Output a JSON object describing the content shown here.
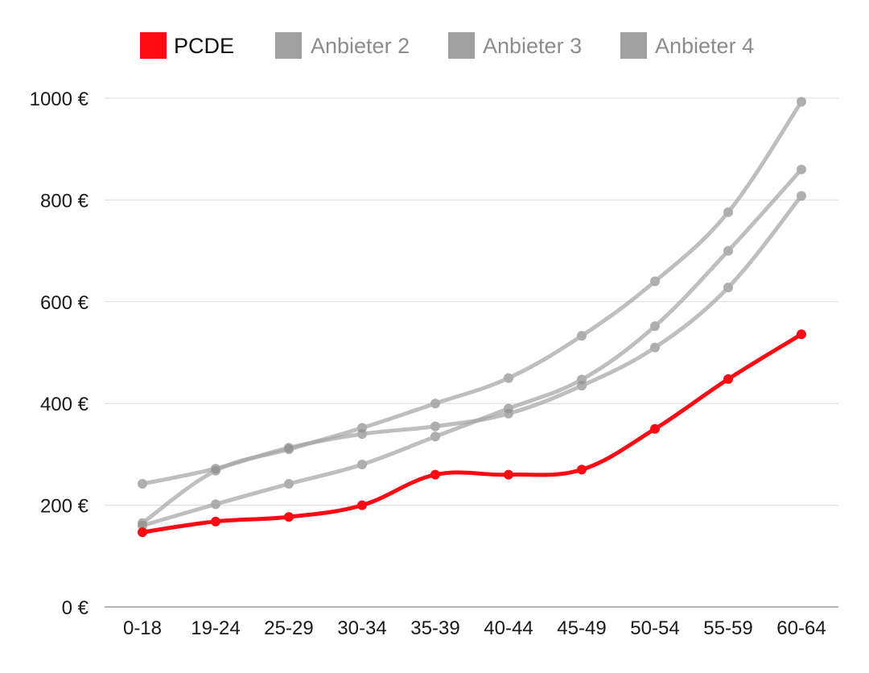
{
  "chart_data": {
    "type": "line",
    "categories": [
      "0-18",
      "19-24",
      "25-29",
      "30-34",
      "35-39",
      "40-44",
      "45-49",
      "50-54",
      "55-59",
      "60-64"
    ],
    "series": [
      {
        "name": "PCDE",
        "color": "#ff0a14",
        "values": [
          147,
          168,
          177,
          200,
          260,
          260,
          270,
          350,
          448,
          536
        ]
      },
      {
        "name": "Anbieter 2",
        "color": "#a6a6a6",
        "values": [
          242,
          272,
          313,
          340,
          355,
          380,
          435,
          510,
          628,
          808
        ]
      },
      {
        "name": "Anbieter 3",
        "color": "#a6a6a6",
        "values": [
          165,
          268,
          310,
          352,
          400,
          450,
          533,
          640,
          776,
          993
        ]
      },
      {
        "name": "Anbieter 4",
        "color": "#a6a6a6",
        "values": [
          160,
          202,
          242,
          280,
          335,
          390,
          447,
          552,
          700,
          860
        ]
      }
    ],
    "ylim": [
      0,
      1000
    ],
    "yticks": [
      0,
      200,
      400,
      600,
      800,
      1000
    ],
    "ytick_labels": [
      "0 €",
      "200 €",
      "400 €",
      "600 €",
      "800 €",
      "1000 €"
    ],
    "grid": true,
    "legend_position": "top"
  }
}
